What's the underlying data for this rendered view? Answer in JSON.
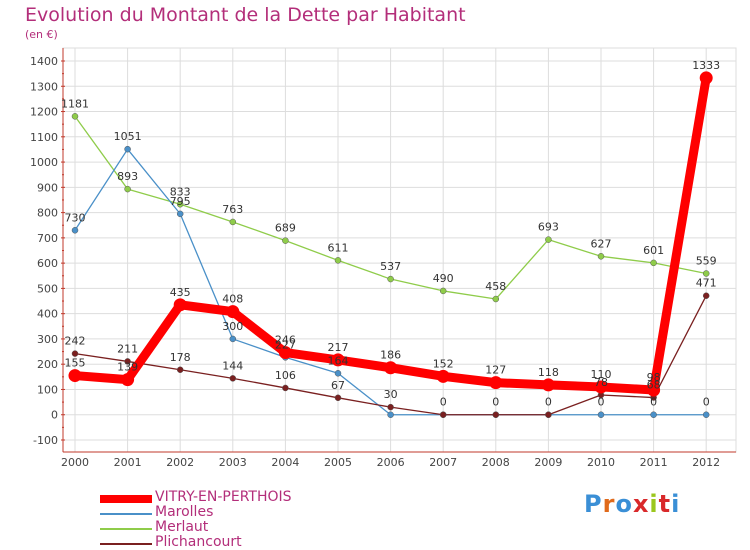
{
  "header": {
    "title": "Evolution du Montant de la Dette par Habitant",
    "unit": "(en €)"
  },
  "logo": {
    "text": "Proxiti",
    "letter_colors": [
      "#3a8fd6",
      "#e06a1b",
      "#3a8fd6",
      "#d9292b",
      "#9bc71e",
      "#d9292b",
      "#3a8fd6"
    ]
  },
  "chart_data": {
    "type": "line",
    "title": "Evolution du Montant de la Dette par Habitant",
    "ylabel": "(en €)",
    "xlabel": "",
    "x": [
      "2000",
      "2001",
      "2002",
      "2003",
      "2004",
      "2005",
      "2006",
      "2007",
      "2008",
      "2009",
      "2010",
      "2011",
      "2012"
    ],
    "ylim": [
      -100,
      1400
    ],
    "yticks": [
      "-100",
      "0",
      "100",
      "200",
      "300",
      "400",
      "500",
      "600",
      "700",
      "800",
      "900",
      "1000",
      "1100",
      "1200",
      "1300",
      "1400"
    ],
    "grid": true,
    "legend_position": "bottom-left",
    "series": [
      {
        "name": "VITRY-EN-PERTHOIS",
        "color": "#ff0000",
        "values": [
          155,
          139,
          435,
          408,
          246,
          217,
          186,
          152,
          127,
          118,
          110,
          98,
          1333
        ],
        "labels": [
          "155",
          "139",
          "435",
          "408",
          "246",
          "217",
          "186",
          "152",
          "127",
          "118",
          "110",
          "98",
          "1333"
        ]
      },
      {
        "name": "Marolles",
        "color": "#4a90c8",
        "values": [
          730,
          1051,
          795,
          300,
          227,
          164,
          0,
          0,
          0,
          0,
          0,
          0,
          0
        ],
        "labels": [
          "730",
          "1051",
          "795",
          "300",
          "227",
          "164",
          "",
          "",
          "",
          "",
          "0",
          "0",
          "0"
        ]
      },
      {
        "name": "Merlaut",
        "color": "#8fcc4a",
        "values": [
          1181,
          893,
          833,
          763,
          689,
          611,
          537,
          490,
          458,
          693,
          627,
          601,
          559
        ],
        "labels": [
          "1181",
          "893",
          "833",
          "763",
          "689",
          "611",
          "537",
          "490",
          "458",
          "693",
          "627",
          "601",
          "559"
        ]
      },
      {
        "name": "Plichancourt",
        "color": "#7a2020",
        "values": [
          242,
          211,
          178,
          144,
          106,
          67,
          30,
          0,
          0,
          0,
          78,
          68,
          471
        ],
        "labels": [
          "242",
          "211",
          "178",
          "144",
          "106",
          "67",
          "30",
          "0",
          "0",
          "0",
          "78",
          "68",
          "471"
        ]
      }
    ]
  }
}
